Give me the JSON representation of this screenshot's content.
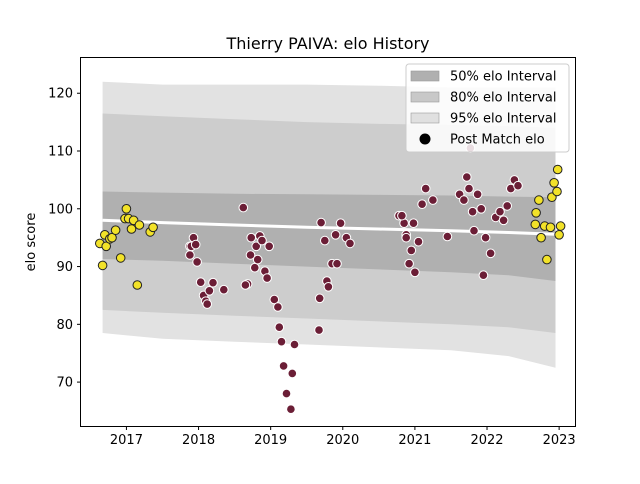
{
  "chart_data": {
    "type": "scatter",
    "title": "Thierry PAIVA: elo History",
    "xlabel": "",
    "ylabel": "elo score",
    "xlim": [
      2016.37,
      2023.22
    ],
    "ylim": [
      62.4,
      126.1
    ],
    "x_ticks": [
      {
        "value": 2017,
        "label": "2017"
      },
      {
        "value": 2018,
        "label": "2018"
      },
      {
        "value": 2019,
        "label": "2019"
      },
      {
        "value": 2020,
        "label": "2020"
      },
      {
        "value": 2021,
        "label": "2021"
      },
      {
        "value": 2022,
        "label": "2022"
      },
      {
        "value": 2023,
        "label": "2023"
      }
    ],
    "y_ticks": [
      {
        "value": 70,
        "label": "70"
      },
      {
        "value": 80,
        "label": "80"
      },
      {
        "value": 90,
        "label": "90"
      },
      {
        "value": 100,
        "label": "100"
      },
      {
        "value": 110,
        "label": "110"
      },
      {
        "value": 120,
        "label": "120"
      }
    ],
    "grid": false,
    "legend_position": "top-right",
    "legend": [
      {
        "label": "50% elo Interval",
        "kind": "patch",
        "color": "#b0b0b0"
      },
      {
        "label": "80% elo Interval",
        "kind": "patch",
        "color": "#c8c8c8"
      },
      {
        "label": "95% elo Interval",
        "kind": "patch",
        "color": "#e0e0e0"
      },
      {
        "label": "Post Match elo",
        "kind": "marker",
        "color": "#000000"
      }
    ],
    "colors": {
      "band_50": "#aaaaaa",
      "band_80": "#c9c9c9",
      "band_95": "#e2e2e2",
      "mean_line": "#ffffff",
      "recent_points": "#f2e229",
      "older_points": "#6b1e36",
      "point_edge_recent": "#222222",
      "point_edge_older": "#ffffff"
    },
    "bands": [
      {
        "level": "95",
        "x": [
          2016.67,
          2017.5,
          2018.5,
          2019.5,
          2020.5,
          2021.5,
          2022.3,
          2022.95
        ],
        "upper": [
          122,
          121.5,
          121.5,
          121.5,
          121.3,
          121,
          121,
          121
        ],
        "lower": [
          78.5,
          77.5,
          77,
          76.5,
          76,
          75.5,
          74.5,
          72.5
        ]
      },
      {
        "level": "80",
        "x": [
          2016.67,
          2017.5,
          2018.5,
          2019.5,
          2020.5,
          2021.5,
          2022.3,
          2022.95
        ],
        "upper": [
          116.5,
          116,
          115.5,
          115,
          114.7,
          114.5,
          114.3,
          114
        ],
        "lower": [
          82.5,
          82,
          81.5,
          81,
          80.5,
          80,
          79.5,
          78.5
        ]
      },
      {
        "level": "50",
        "x": [
          2016.67,
          2017.5,
          2018.5,
          2019.5,
          2020.5,
          2021.5,
          2022.3,
          2022.95
        ],
        "upper": [
          103,
          102.8,
          102.6,
          102.5,
          102.4,
          102.3,
          102.1,
          102
        ],
        "lower": [
          91.3,
          91,
          90.5,
          90,
          89.5,
          89,
          88.5,
          87.5
        ]
      }
    ],
    "mean_line": {
      "x": [
        2016.67,
        2017.5,
        2018.5,
        2019.5,
        2020.5,
        2021.5,
        2022.3,
        2022.95
      ],
      "y": [
        98.0,
        97.6,
        97.2,
        96.8,
        96.5,
        96.2,
        95.9,
        95.6
      ]
    },
    "series": [
      {
        "x": [
          2017.88,
          2017.9,
          2017.93,
          2017.96,
          2017.98,
          2017.88,
          2018.03,
          2018.07,
          2018.1,
          2018.12,
          2018.15,
          2018.2,
          2018.35,
          2018.62,
          2018.68,
          2018.65,
          2018.72,
          2018.73,
          2018.78,
          2018.8,
          2018.82,
          2018.85,
          2018.88,
          2018.92,
          2018.95,
          2018.98,
          2019.05,
          2019.1,
          2019.12,
          2019.15,
          2019.18,
          2019.22,
          2019.28,
          2019.3,
          2019.33,
          2019.67,
          2019.68,
          2019.7,
          2019.75,
          2019.78,
          2019.8,
          2019.85,
          2019.9,
          2019.92,
          2019.97,
          2020.05,
          2020.1,
          2020.78,
          2020.85,
          2020.88,
          2020.92,
          2020.95,
          2021.0,
          2021.05,
          2021.1,
          2021.15,
          2021.25,
          2021.45,
          2021.62,
          2021.68,
          2021.72,
          2021.75,
          2021.77,
          2021.8,
          2021.82,
          2021.87,
          2021.92,
          2021.95,
          2021.98,
          2022.05,
          2022.12,
          2022.18,
          2022.23,
          2022.28,
          2022.33,
          2022.38,
          2022.43,
          2020.82,
          2020.88,
          2020.98
        ],
        "y": [
          93.5,
          93.5,
          95.0,
          93.8,
          90.8,
          92.0,
          87.3,
          85.0,
          84.0,
          83.5,
          85.8,
          87.2,
          86.0,
          100.2,
          87.0,
          86.8,
          92.0,
          95.0,
          89.8,
          93.5,
          91.2,
          95.3,
          94.5,
          89.2,
          88.0,
          93.5,
          84.3,
          83.0,
          79.5,
          77.0,
          72.8,
          68.0,
          65.3,
          71.5,
          76.5,
          79.0,
          84.5,
          97.6,
          94.5,
          87.5,
          86.5,
          90.5,
          95.5,
          90.5,
          97.5,
          95.0,
          94.0,
          98.8,
          97.5,
          95.5,
          90.5,
          92.8,
          89.0,
          94.3,
          100.8,
          103.5,
          101.5,
          95.2,
          102.5,
          101.5,
          105.5,
          103.5,
          110.5,
          99.5,
          96.2,
          102.5,
          100.0,
          88.5,
          95.0,
          92.3,
          98.5,
          99.5,
          98.0,
          100.5,
          103.5,
          105.0,
          104.0,
          98.8,
          95.0,
          97.5
        ]
      },
      {
        "x": [
          2016.63,
          2016.67,
          2016.7,
          2016.72,
          2016.77,
          2016.8,
          2016.85,
          2016.92,
          2016.98,
          2017.0,
          2017.03,
          2017.07,
          2017.1,
          2017.15,
          2017.18,
          2017.33,
          2017.37,
          2022.67,
          2022.68,
          2022.72,
          2022.75,
          2022.8,
          2022.83,
          2022.88,
          2022.9,
          2022.93,
          2022.97,
          2022.98,
          2023.0,
          2023.02
        ],
        "y": [
          94.0,
          90.2,
          95.5,
          93.5,
          94.8,
          95.0,
          96.3,
          91.5,
          98.3,
          100.0,
          98.3,
          96.5,
          98.0,
          86.8,
          97.2,
          96.0,
          96.8,
          97.3,
          99.3,
          101.5,
          95.0,
          97.0,
          91.2,
          96.8,
          102.0,
          104.5,
          103.0,
          106.8,
          95.5,
          97.0
        ]
      }
    ]
  }
}
